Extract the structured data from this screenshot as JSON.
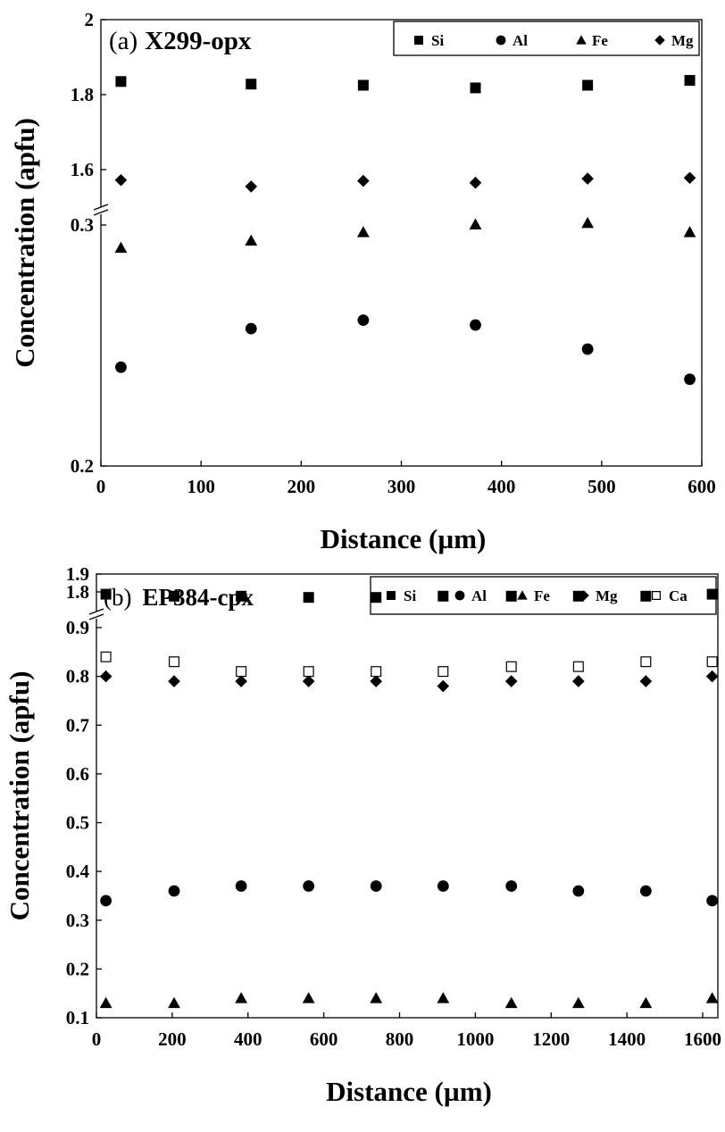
{
  "chart_data": [
    {
      "type": "scatter",
      "id": "a",
      "title_prefix": "(a)",
      "title": "X299-opx",
      "xlabel": "Distance (µm)",
      "ylabel": "Concentration (apfu)",
      "xlim": [
        0,
        600
      ],
      "x_ticks": [
        "0",
        "100",
        "200",
        "300",
        "400",
        "500",
        "600"
      ],
      "y_ticks": [
        "2",
        "1.8",
        "1.6",
        "0.3",
        "0.2"
      ],
      "broken_y_axis": {
        "upper": [
          1.5,
          2.0
        ],
        "lower": [
          0.2,
          0.3
        ]
      },
      "grid": false,
      "legend_position": "top-right",
      "x": [
        20,
        150,
        262,
        374,
        486,
        588
      ],
      "series": [
        {
          "name": "Si",
          "marker": "square-filled",
          "values": [
            1.835,
            1.828,
            1.825,
            1.818,
            1.825,
            1.838
          ]
        },
        {
          "name": "Al",
          "marker": "circle-filled",
          "values": [
            0.241,
            0.257,
            0.2605,
            0.2585,
            0.2485,
            0.236
          ]
        },
        {
          "name": "Fe",
          "marker": "triangle-filled",
          "values": [
            0.2905,
            0.2935,
            0.297,
            0.3002,
            0.3008,
            0.297
          ]
        },
        {
          "name": "Mg",
          "marker": "diamond-filled",
          "values": [
            1.572,
            1.555,
            1.57,
            1.565,
            1.576,
            1.578
          ]
        }
      ]
    },
    {
      "type": "scatter",
      "id": "b",
      "title_prefix": "(b)",
      "title": "EP384-cpx",
      "xlabel": "Distance (µm)",
      "ylabel": "Concentration (apfu)",
      "xlim": [
        0,
        1640
      ],
      "x_ticks": [
        "0",
        "200",
        "400",
        "600",
        "800",
        "1000",
        "1200",
        "1400",
        "1600"
      ],
      "y_ticks": [
        "1.9",
        "1.8",
        "0.9",
        "0.8",
        "0.7",
        "0.6",
        "0.5",
        "0.4",
        "0.3",
        "0.2",
        "0.1"
      ],
      "broken_y_axis": {
        "upper": [
          1.75,
          1.9
        ],
        "lower": [
          0.1,
          0.9
        ]
      },
      "grid": false,
      "legend_position": "top-right",
      "x": [
        25,
        205,
        382,
        560,
        738,
        915,
        1095,
        1272,
        1450,
        1625
      ],
      "series": [
        {
          "name": "Si",
          "marker": "square-filled",
          "values": [
            1.787,
            1.776,
            1.776,
            1.769,
            1.769,
            1.776,
            1.776,
            1.776,
            1.776,
            1.787
          ]
        },
        {
          "name": "Al",
          "marker": "circle-filled",
          "values": [
            0.34,
            0.36,
            0.37,
            0.37,
            0.37,
            0.37,
            0.37,
            0.36,
            0.36,
            0.34
          ]
        },
        {
          "name": "Fe",
          "marker": "triangle-filled",
          "values": [
            0.13,
            0.13,
            0.14,
            0.14,
            0.14,
            0.14,
            0.13,
            0.13,
            0.13,
            0.14
          ]
        },
        {
          "name": "Mg",
          "marker": "diamond-filled",
          "values": [
            0.8,
            0.79,
            0.79,
            0.79,
            0.79,
            0.78,
            0.79,
            0.79,
            0.79,
            0.8
          ]
        },
        {
          "name": "Ca",
          "marker": "square-open",
          "values": [
            0.84,
            0.83,
            0.81,
            0.81,
            0.81,
            0.81,
            0.82,
            0.82,
            0.83,
            0.83
          ]
        }
      ]
    }
  ]
}
